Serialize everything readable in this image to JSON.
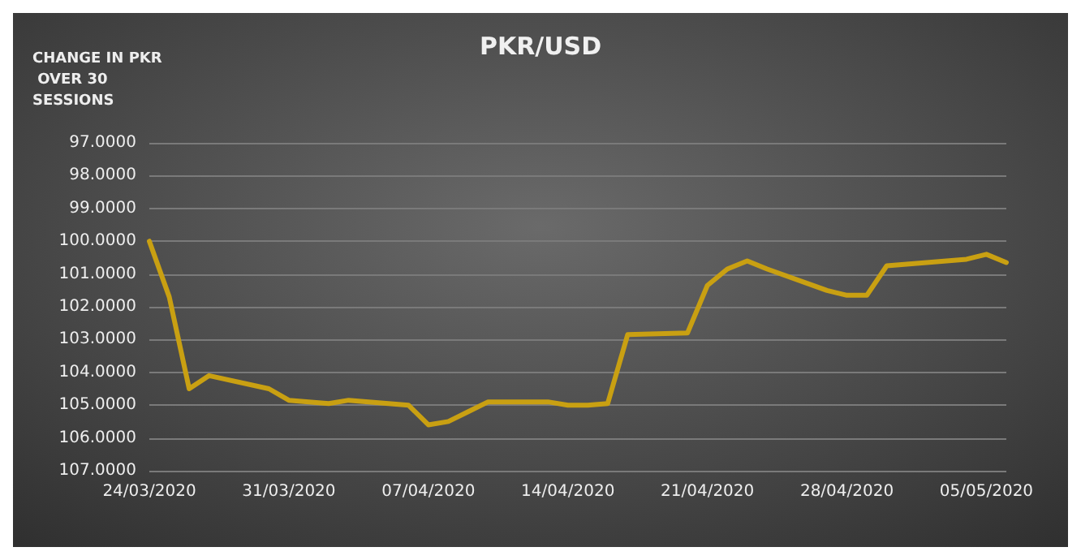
{
  "chart_data": {
    "type": "line",
    "title": "PKR/USD",
    "ylabel": "CHANGE IN PKR OVER 30 SESSIONS",
    "x": [
      "2020-03-24",
      "2020-03-25",
      "2020-03-26",
      "2020-03-27",
      "2020-03-30",
      "2020-03-31",
      "2020-04-01",
      "2020-04-02",
      "2020-04-03",
      "2020-04-06",
      "2020-04-07",
      "2020-04-08",
      "2020-04-09",
      "2020-04-10",
      "2020-04-13",
      "2020-04-14",
      "2020-04-15",
      "2020-04-16",
      "2020-04-17",
      "2020-04-20",
      "2020-04-21",
      "2020-04-22",
      "2020-04-23",
      "2020-04-24",
      "2020-04-27",
      "2020-04-28",
      "2020-04-29",
      "2020-04-30",
      "2020-05-04",
      "2020-05-05",
      "2020-05-06"
    ],
    "series": [
      {
        "color": "#c9a012",
        "values": [
          100.0,
          101.7,
          104.5,
          104.1,
          104.5,
          104.85,
          104.9,
          104.95,
          104.85,
          105.0,
          105.6,
          105.5,
          105.2,
          104.9,
          104.9,
          105.0,
          105.0,
          104.95,
          102.85,
          102.8,
          101.35,
          100.85,
          100.6,
          100.85,
          101.5,
          101.65,
          101.65,
          100.75,
          100.55,
          100.4,
          100.65
        ]
      }
    ],
    "xlim": [
      "2020-03-24",
      "2020-05-06"
    ],
    "xticks": [
      {
        "value": "2020-03-24",
        "label": "24/03/2020"
      },
      {
        "value": "2020-03-31",
        "label": "31/03/2020"
      },
      {
        "value": "2020-04-07",
        "label": "07/04/2020"
      },
      {
        "value": "2020-04-14",
        "label": "14/04/2020"
      },
      {
        "value": "2020-04-21",
        "label": "21/04/2020"
      },
      {
        "value": "2020-04-28",
        "label": "28/04/2020"
      },
      {
        "value": "2020-05-05",
        "label": "05/05/2020"
      }
    ],
    "ylim": [
      107,
      97
    ],
    "yticks": [
      {
        "value": 97,
        "label": "97.0000"
      },
      {
        "value": 98,
        "label": "98.0000"
      },
      {
        "value": 99,
        "label": "99.0000"
      },
      {
        "value": 100,
        "label": "100.0000"
      },
      {
        "value": 101,
        "label": "101.0000"
      },
      {
        "value": 102,
        "label": "102.0000"
      },
      {
        "value": 103,
        "label": "103.0000"
      },
      {
        "value": 104,
        "label": "104.0000"
      },
      {
        "value": 105,
        "label": "105.0000"
      },
      {
        "value": 106,
        "label": "106.0000"
      },
      {
        "value": 107,
        "label": "107.0000"
      }
    ],
    "grid": "y",
    "marker": "none",
    "line_style": "solid"
  }
}
